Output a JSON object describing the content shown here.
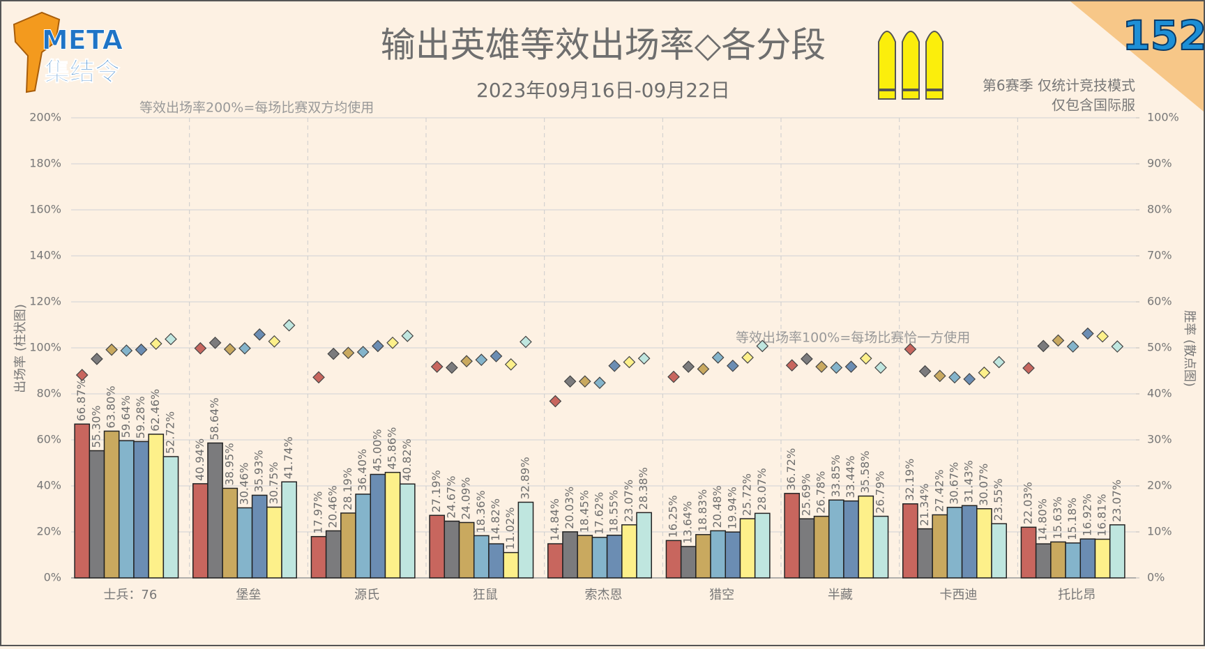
{
  "logo": {
    "title": "META",
    "subtitle": "集结令"
  },
  "issue": "152",
  "chart_data": {
    "type": "bar",
    "title": "输出英雄等效出场率◇各分段",
    "subtitle": "2023年09月16日-09月22日",
    "notes": [
      "第6赛季 仅统计竞技模式",
      "仅包含国际服"
    ],
    "annotations": [
      "等效出场率200%=每场比赛双方均使用",
      "等效出场率100%=每场比赛恰一方使用"
    ],
    "ylabel": "出场率 (柱状图)",
    "y2label": "胜率 (散点图)",
    "categories": [
      "士兵：76",
      "堡垒",
      "源氏",
      "狂鼠",
      "索杰恩",
      "猎空",
      "半藏",
      "卡西迪",
      "托比昂"
    ],
    "ylim": [
      0,
      200
    ],
    "yticks": [
      {
        "value": 0,
        "label": "0%"
      },
      {
        "value": 20,
        "label": "20%"
      },
      {
        "value": 40,
        "label": "40%"
      },
      {
        "value": 60,
        "label": "60%"
      },
      {
        "value": 80,
        "label": "80%"
      },
      {
        "value": 100,
        "label": "100%"
      },
      {
        "value": 120,
        "label": "120%"
      },
      {
        "value": 140,
        "label": "140%"
      },
      {
        "value": 160,
        "label": "160%"
      },
      {
        "value": 180,
        "label": "180%"
      },
      {
        "value": 200,
        "label": "200%"
      }
    ],
    "y2lim": [
      0,
      100
    ],
    "y2ticks": [
      {
        "value": 0,
        "label": "0%"
      },
      {
        "value": 10,
        "label": "10%"
      },
      {
        "value": 20,
        "label": "20%"
      },
      {
        "value": 30,
        "label": "30%"
      },
      {
        "value": 40,
        "label": "40%"
      },
      {
        "value": 50,
        "label": "50%"
      },
      {
        "value": 60,
        "label": "60%"
      },
      {
        "value": 70,
        "label": "70%"
      },
      {
        "value": 80,
        "label": "80%"
      },
      {
        "value": 90,
        "label": "90%"
      },
      {
        "value": 100,
        "label": "100%"
      }
    ],
    "grid": true,
    "series": [
      {
        "type": "bar",
        "color": "#c8665e",
        "values": [
          66.87,
          40.94,
          17.97,
          27.19,
          14.84,
          16.25,
          36.72,
          32.19,
          22.03
        ],
        "value_labels": [
          "66.87%",
          "40.94%",
          "17.97%",
          "27.19%",
          "14.84%",
          "16.25%",
          "36.72%",
          "32.19%",
          "22.03%"
        ]
      },
      {
        "type": "bar",
        "color": "#7b7b7d",
        "values": [
          55.3,
          58.64,
          20.46,
          24.67,
          20.03,
          13.64,
          25.69,
          21.34,
          14.8
        ],
        "value_labels": [
          "55.30%",
          "58.64%",
          "20.46%",
          "24.67%",
          "20.03%",
          "13.64%",
          "25.69%",
          "21.34%",
          "14.80%"
        ]
      },
      {
        "type": "bar",
        "color": "#c9a95f",
        "values": [
          63.8,
          38.95,
          28.19,
          24.09,
          18.45,
          18.83,
          26.78,
          27.42,
          15.63
        ],
        "value_labels": [
          "63.80%",
          "38.95%",
          "28.19%",
          "24.09%",
          "18.45%",
          "18.83%",
          "26.78%",
          "27.42%",
          "15.63%"
        ]
      },
      {
        "type": "bar",
        "color": "#84b4cb",
        "values": [
          59.64,
          30.46,
          36.4,
          18.36,
          17.62,
          20.48,
          33.85,
          30.67,
          15.18
        ],
        "value_labels": [
          "59.64%",
          "30.46%",
          "36.40%",
          "18.36%",
          "17.62%",
          "20.48%",
          "33.85%",
          "30.67%",
          "15.18%"
        ]
      },
      {
        "type": "bar",
        "color": "#6b8db3",
        "values": [
          59.28,
          35.93,
          45.0,
          14.82,
          18.55,
          19.94,
          33.44,
          31.43,
          16.92
        ],
        "value_labels": [
          "59.28%",
          "35.93%",
          "45.00%",
          "14.82%",
          "18.55%",
          "19.94%",
          "33.44%",
          "31.43%",
          "16.92%"
        ]
      },
      {
        "type": "bar",
        "color": "#fdf08a",
        "values": [
          62.46,
          30.75,
          45.86,
          11.02,
          23.07,
          25.72,
          35.58,
          30.07,
          16.81
        ],
        "value_labels": [
          "62.46%",
          "30.75%",
          "45.86%",
          "11.02%",
          "23.07%",
          "25.72%",
          "35.58%",
          "30.07%",
          "16.81%"
        ]
      },
      {
        "type": "bar",
        "color": "#bfe6df",
        "values": [
          52.72,
          41.74,
          40.82,
          32.89,
          28.38,
          28.07,
          26.79,
          23.55,
          23.07
        ],
        "value_labels": [
          "52.72%",
          "41.74%",
          "40.82%",
          "32.89%",
          "28.38%",
          "28.07%",
          "26.79%",
          "23.55%",
          "23.07%"
        ]
      },
      {
        "type": "scatter",
        "axis": "y2",
        "color": "#c8665e",
        "values": [
          44.1,
          49.9,
          43.6,
          45.9,
          38.4,
          43.7,
          46.2,
          49.7,
          45.6
        ]
      },
      {
        "type": "scatter",
        "axis": "y2",
        "color": "#7b7b7d",
        "values": [
          47.6,
          51.1,
          48.7,
          45.7,
          42.7,
          45.9,
          47.6,
          44.9,
          50.4
        ]
      },
      {
        "type": "scatter",
        "axis": "y2",
        "color": "#c9a95f",
        "values": [
          49.6,
          49.7,
          48.9,
          47.1,
          42.7,
          45.4,
          45.9,
          43.9,
          51.6
        ]
      },
      {
        "type": "scatter",
        "axis": "y2",
        "color": "#84b4cb",
        "values": [
          49.4,
          49.9,
          49.1,
          47.4,
          42.4,
          47.9,
          45.7,
          43.6,
          50.3
        ]
      },
      {
        "type": "scatter",
        "axis": "y2",
        "color": "#6b8db3",
        "values": [
          49.6,
          52.9,
          50.4,
          48.2,
          46.1,
          46.1,
          45.9,
          43.2,
          53.1
        ]
      },
      {
        "type": "scatter",
        "axis": "y2",
        "color": "#fdf08a",
        "values": [
          50.9,
          51.4,
          51.1,
          46.4,
          46.9,
          47.9,
          47.7,
          44.6,
          52.5
        ]
      },
      {
        "type": "scatter",
        "axis": "y2",
        "color": "#bfe6df",
        "values": [
          51.9,
          54.9,
          52.6,
          51.3,
          47.7,
          50.4,
          45.7,
          46.9,
          50.3
        ]
      }
    ]
  }
}
